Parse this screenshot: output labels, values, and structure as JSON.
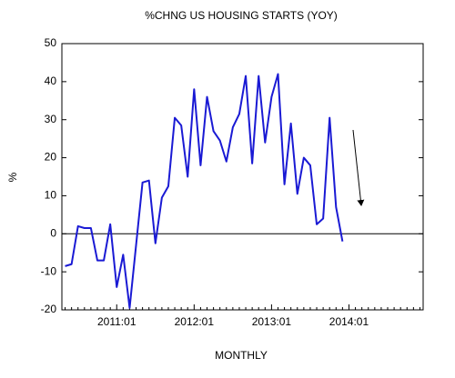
{
  "chart_data": {
    "type": "line",
    "title": "%CHNG US HOUSING STARTS (YOY)",
    "xlabel": "MONTHLY",
    "ylabel": "%",
    "categories": [
      null,
      null,
      null,
      null,
      null,
      null,
      null,
      null,
      "2011:01",
      null,
      null,
      null,
      null,
      null,
      null,
      null,
      null,
      null,
      null,
      null,
      "2012:01",
      null,
      null,
      null,
      null,
      null,
      null,
      null,
      null,
      null,
      null,
      null,
      "2013:01",
      null,
      null,
      null,
      null,
      null,
      null,
      null,
      null,
      null,
      null,
      null,
      "2014:01",
      null,
      null,
      null,
      null,
      null,
      null,
      null,
      null,
      null,
      null,
      null
    ],
    "series": [
      {
        "name": "%CHNG US HOUSING STARTS",
        "color": "#1a1ad4",
        "values": [
          -8.5,
          -8,
          2,
          1.5,
          1.5,
          -7,
          -7,
          2.5,
          -14,
          -5.5,
          -19.5,
          -3,
          13.5,
          14,
          -2.5,
          9.5,
          12.5,
          30.5,
          28.5,
          15,
          38,
          18,
          36,
          27,
          24.5,
          19,
          28,
          31.5,
          41.5,
          18.5,
          41.5,
          24,
          36,
          42,
          13,
          29,
          10.5,
          20,
          18,
          2.5,
          4,
          30.5,
          7,
          -2,
          null,
          null,
          null,
          null,
          null,
          null,
          null,
          null,
          null,
          null,
          null,
          null
        ]
      }
    ],
    "ylim": [
      -20,
      50
    ],
    "yticks": [
      -20,
      -10,
      0,
      10,
      20,
      30,
      40,
      50
    ],
    "zeroline": true,
    "grid": false
  }
}
